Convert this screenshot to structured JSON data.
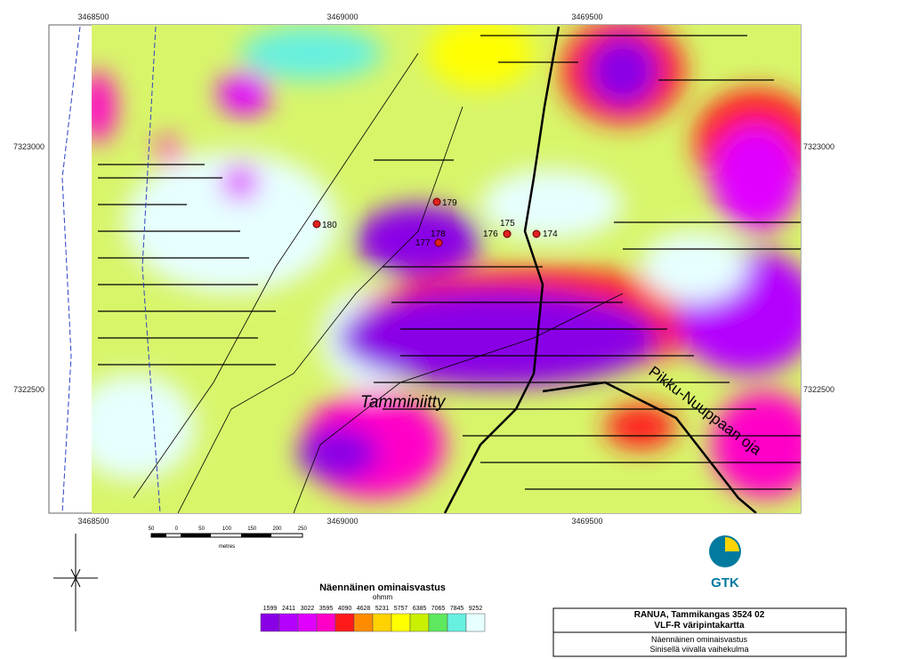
{
  "map": {
    "x_labels": [
      3468500,
      3469000,
      3469500
    ],
    "y_labels": [
      7323000,
      7322500
    ],
    "points": [
      {
        "label": 180
      },
      {
        "label": 179
      },
      {
        "label": 178
      },
      {
        "label": 177
      },
      {
        "label": 176
      },
      {
        "label": 175
      },
      {
        "label": 174
      }
    ],
    "place_names": [
      "Tamminiitty",
      "Pikku-Nuuppaan oja"
    ]
  },
  "scale_bar": {
    "labels": [
      50,
      0,
      50,
      100,
      150,
      200,
      250
    ],
    "unit": "metres"
  },
  "legend": {
    "title": "Näennäinen ominaisvastus",
    "unit": "ohmm",
    "classes": [
      {
        "label": 1599,
        "color": "#8a00e6"
      },
      {
        "label": 2411,
        "color": "#b400ff"
      },
      {
        "label": 3022,
        "color": "#e000ff"
      },
      {
        "label": 3595,
        "color": "#ff00c8"
      },
      {
        "label": 4090,
        "color": "#ff1a1a"
      },
      {
        "label": 4628,
        "color": "#ff8c00"
      },
      {
        "label": 5231,
        "color": "#ffd200"
      },
      {
        "label": 5757,
        "color": "#ffff00"
      },
      {
        "label": 6385,
        "color": "#c8f000"
      },
      {
        "label": 7065,
        "color": "#5ee85e"
      },
      {
        "label": 7845,
        "color": "#66f0e0"
      },
      {
        "label": 9252,
        "color": "#e6ffff"
      }
    ]
  },
  "logo": "GTK",
  "title_block": {
    "line1": "RANUA, Tammikangas 3524 02",
    "line2": "VLF-R väripintakartta",
    "line3": "Näennäinen ominaisvastus",
    "line4": "Sinisellä viivalla vaihekulma"
  }
}
